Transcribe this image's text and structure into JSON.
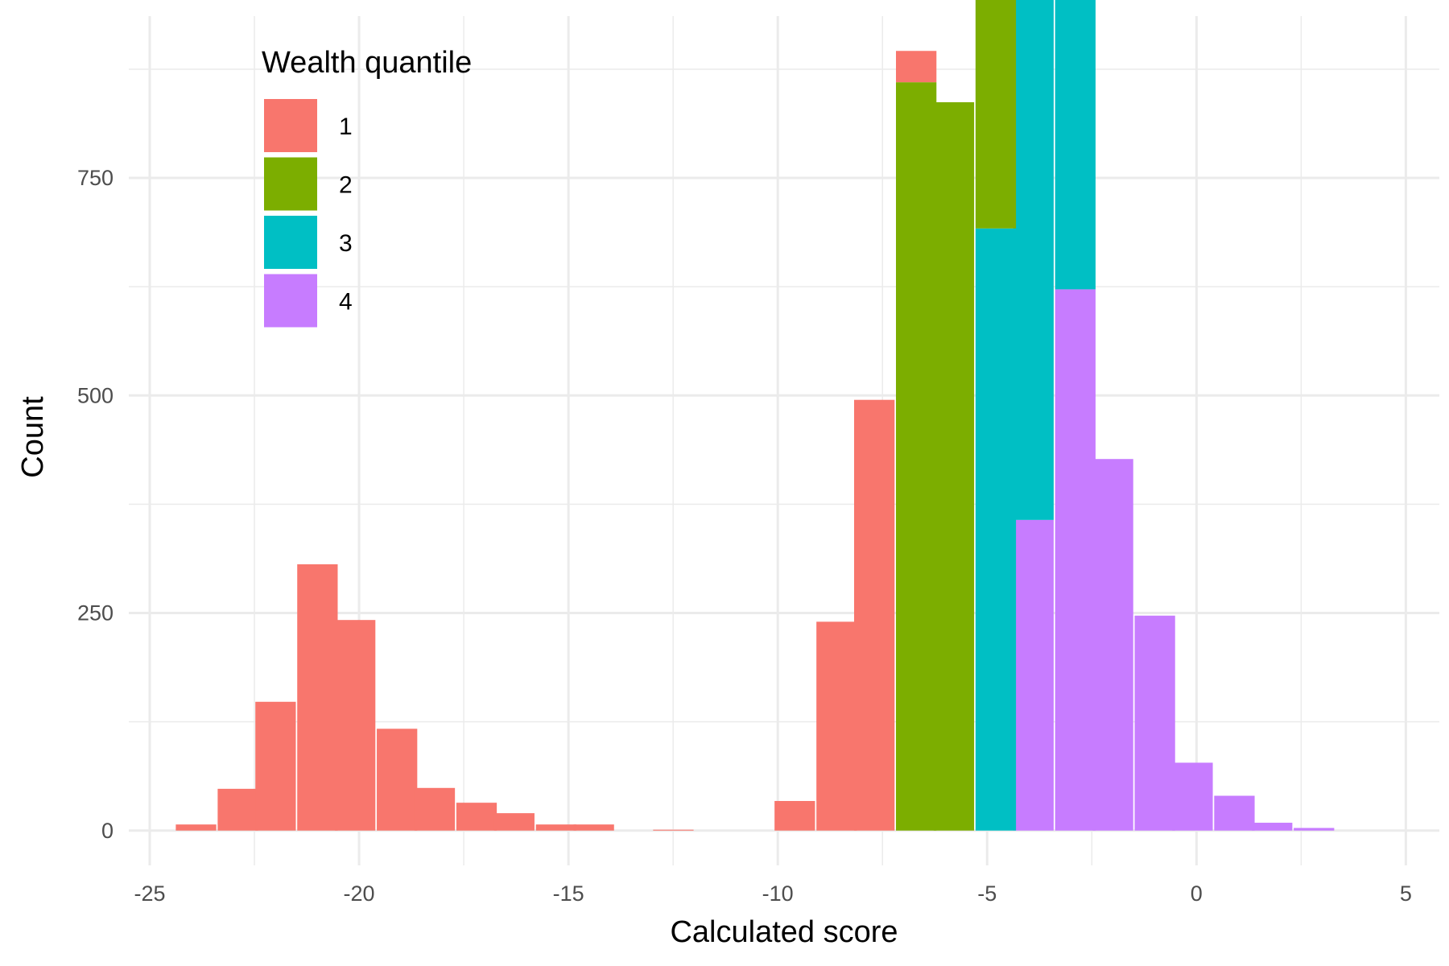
{
  "chart_data": {
    "type": "bar",
    "subtype": "stacked-histogram",
    "xlabel": "Calculated score",
    "ylabel": "Count",
    "xlim": [
      -25.5,
      5.8
    ],
    "ylim": [
      -40,
      936
    ],
    "x_ticks": [
      -25,
      -20,
      -15,
      -10,
      -5,
      0,
      5
    ],
    "x_tick_labels": [
      "-25",
      "-20",
      "-15",
      "-10",
      "-5",
      "0",
      "5"
    ],
    "y_ticks": [
      0,
      250,
      500,
      750
    ],
    "y_tick_labels": [
      "0",
      "250",
      "500",
      "750"
    ],
    "grid": true,
    "legend": {
      "title": "Wealth quantile",
      "position": "top-left",
      "entries": [
        "1",
        "2",
        "3",
        "4"
      ]
    },
    "colors": {
      "1": "#F8766D",
      "2": "#7CAE00",
      "3": "#00BFC4",
      "4": "#C77CFF",
      "grid": "#EBEBEB",
      "tick_text": "#4D4D4D"
    },
    "bin_width": 0.955,
    "series": [
      {
        "name": "1",
        "color": "#F8766D",
        "bins": [
          {
            "x": -23.9,
            "value": 7
          },
          {
            "x": -22.9,
            "value": 48
          },
          {
            "x": -22.0,
            "value": 148
          },
          {
            "x": -21.0,
            "value": 306
          },
          {
            "x": -20.1,
            "value": 242
          },
          {
            "x": -19.1,
            "value": 117
          },
          {
            "x": -18.2,
            "value": 49
          },
          {
            "x": -17.2,
            "value": 32
          },
          {
            "x": -16.3,
            "value": 20
          },
          {
            "x": -15.3,
            "value": 7
          },
          {
            "x": -14.4,
            "value": 7
          },
          {
            "x": -12.5,
            "value": 1
          },
          {
            "x": -9.6,
            "value": 34
          },
          {
            "x": -8.6,
            "value": 240
          },
          {
            "x": -7.7,
            "value": 495
          },
          {
            "x": -6.7,
            "value": 36
          }
        ]
      },
      {
        "name": "2",
        "color": "#7CAE00",
        "bins": [
          {
            "x": -6.7,
            "value": 860
          },
          {
            "x": -5.8,
            "value": 837
          },
          {
            "x": -4.8,
            "value": 784
          },
          {
            "x": -3.9,
            "value": 0
          }
        ]
      },
      {
        "name": "3",
        "color": "#00BFC4",
        "bins": [
          {
            "x": -4.8,
            "value": 692
          },
          {
            "x": -3.9,
            "value": 752
          },
          {
            "x": -2.9,
            "value": 702
          },
          {
            "x": -2.0,
            "value": 0
          }
        ]
      },
      {
        "name": "4",
        "color": "#C77CFF",
        "bins": [
          {
            "x": -3.9,
            "value": 357
          },
          {
            "x": -2.9,
            "value": 622
          },
          {
            "x": -2.0,
            "value": 427
          },
          {
            "x": -1.0,
            "value": 247
          },
          {
            "x": -0.1,
            "value": 78
          },
          {
            "x": 0.9,
            "value": 40
          },
          {
            "x": 1.8,
            "value": 9
          },
          {
            "x": 2.8,
            "value": 3
          }
        ]
      }
    ]
  }
}
